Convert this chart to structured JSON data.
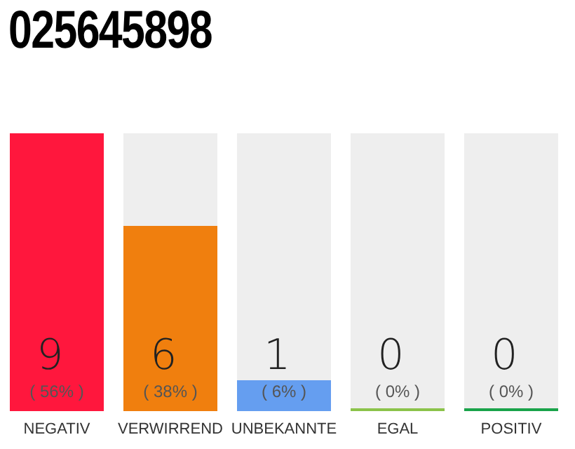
{
  "chart_data": {
    "type": "bar",
    "title": "025645898",
    "categories": [
      "NEGATIV",
      "VERWIRREND",
      "UNBEKANNTE",
      "EGAL",
      "POSITIV"
    ],
    "values": [
      9,
      6,
      1,
      0,
      0
    ],
    "colors": [
      "#ff173d",
      "#f07f0e",
      "#659ef0",
      "#8bc34a",
      "#1aa34a"
    ],
    "value_labels": [
      "9\n( 56% )",
      "6\n( 38% )",
      "1\n( 6% )",
      "0\n( 0% )",
      "0\n( 0% )"
    ],
    "grid": false,
    "legend": false
  }
}
